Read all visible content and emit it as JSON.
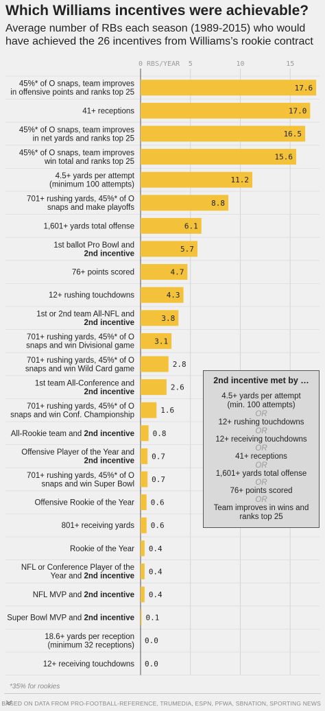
{
  "title": "Which Williams incentives were achievable?",
  "subtitle": "Average number of RBs each season (1989-2015) who would have achieved the 26 incentives from Williams’s rookie contract",
  "colors": {
    "bar": "#f3c13a",
    "background": "#f0f0f0",
    "box": "#d9d9d9"
  },
  "chart_data": {
    "type": "bar",
    "orientation": "horizontal",
    "title": "Which Williams incentives were achievable?",
    "xlim": [
      0,
      17.6
    ],
    "x_ticks": [
      0,
      5,
      10,
      15
    ],
    "x_tick_labels": [
      "0 RBS/YEAR",
      "5",
      "10",
      "15"
    ],
    "grid": true,
    "categories": [
      [
        "45%* of O snaps, team improves",
        "in offensive points and ranks top 25"
      ],
      [
        "41+ receptions"
      ],
      [
        "45%* of O snaps, team improves",
        "in net yards and ranks top 25"
      ],
      [
        "45%* of O snaps, team improves",
        "win total and ranks top 25"
      ],
      [
        "4.5+ yards per attempt",
        "(minimum 100 attempts)"
      ],
      [
        "701+ rushing yards, 45%* of O",
        "snaps and make playoffs"
      ],
      [
        "1,601+ yards total offense"
      ],
      [
        "1st ballot Pro Bowl and",
        "2nd incentive"
      ],
      [
        "76+ points scored"
      ],
      [
        "12+ rushing touchdowns"
      ],
      [
        "1st or 2nd team All-NFL and",
        "2nd incentive"
      ],
      [
        "701+ rushing yards, 45%* of O",
        "snaps and win Divisional game"
      ],
      [
        "701+ rushing yards, 45%* of O",
        "snaps and win Wild Card game"
      ],
      [
        "1st team All-Conference and",
        "2nd incentive"
      ],
      [
        "701+ rushing yards, 45%* of O",
        "snaps and win Conf. Championship"
      ],
      [
        "All-Rookie team and 2nd incentive"
      ],
      [
        "Offensive Player of the Year and",
        "2nd incentive"
      ],
      [
        "701+ rushing yards, 45%* of O",
        "snaps and win Super Bowl"
      ],
      [
        "Offensive Rookie of the Year"
      ],
      [
        "801+ receiving yards"
      ],
      [
        "Rookie of the Year"
      ],
      [
        "NFL or Conference Player of the",
        "Year and 2nd incentive"
      ],
      [
        "NFL MVP and 2nd incentive"
      ],
      [
        "Super Bowl MVP and 2nd incentive"
      ],
      [
        "18.6+ yards per reception",
        "(minimum 32 receptions)"
      ],
      [
        "12+ receiving touchdowns"
      ]
    ],
    "values": [
      17.6,
      17.0,
      16.5,
      15.6,
      11.2,
      8.8,
      6.1,
      5.7,
      4.7,
      4.3,
      3.8,
      3.1,
      2.8,
      2.6,
      1.6,
      0.8,
      0.7,
      0.7,
      0.6,
      0.6,
      0.4,
      0.4,
      0.4,
      0.1,
      0.0,
      0.0
    ],
    "value_labels": [
      "17.6",
      "17.0",
      "16.5",
      "15.6",
      "11.2",
      "8.8",
      "6.1",
      "5.7",
      "4.7",
      "4.3",
      "3.8",
      "3.1",
      "2.8",
      "2.6",
      "1.6",
      "0.8",
      "0.7",
      "0.7",
      "0.6",
      "0.6",
      "0.4",
      "0.4",
      "0.4",
      "0.1",
      "0.0",
      "0.0"
    ]
  },
  "incentive_box": {
    "heading": "2nd incentive met by …",
    "items": [
      "4.5+ yards per attempt (min. 100 attempts)",
      "OR",
      "12+ rushing touchdowns",
      "OR",
      "12+ receiving touchdowns",
      "OR",
      "41+ receptions",
      "OR",
      "1,601+ yards total offense",
      "OR",
      "76+ points scored",
      "OR",
      "Team improves in wins and ranks top 25"
    ]
  },
  "footnote": "*35% for rookies",
  "source": "BASED ON DATA FROM PRO-FOOTBALL-REFERENCE, TRUMEDIA, ESPN, PFWA, SBNATION, SPORTING NEWS"
}
